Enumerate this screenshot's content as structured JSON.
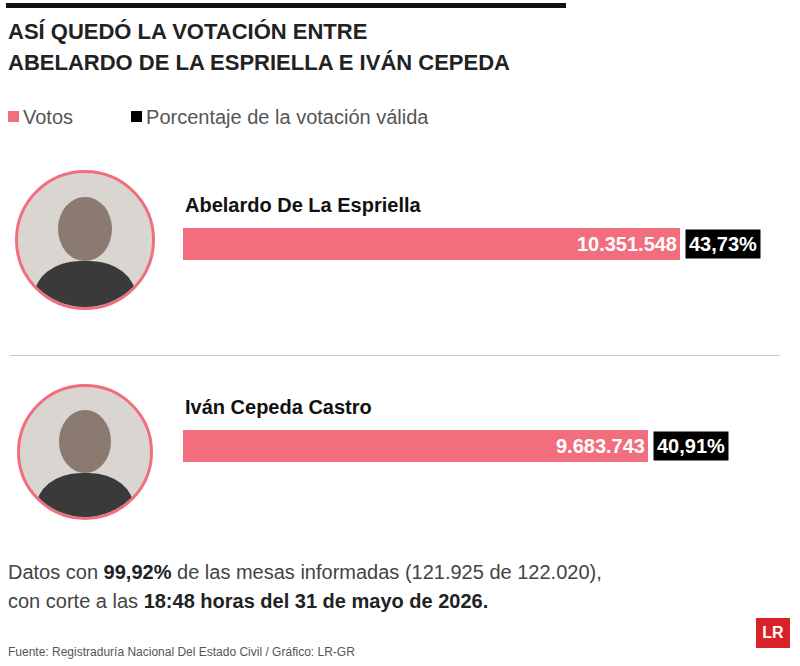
{
  "chart_data": {
    "type": "bar",
    "orientation": "horizontal",
    "title": "ASÍ QUEDÓ LA VOTACIÓN ENTRE\nABELARDO DE LA ESPRIELLA E IVÁN CEPEDA",
    "categories": [
      "Abelardo De La Espriella",
      "Iván Cepeda Castro"
    ],
    "series": [
      {
        "name": "Votos",
        "type": "bar",
        "color": "#f26d7d",
        "values": [
          10351548,
          9683743
        ],
        "value_labels": [
          "10.351.548",
          "9.683.743"
        ]
      },
      {
        "name": "Porcentaje de la votación válida",
        "type": "text",
        "color": "#000000",
        "values": [
          43.73,
          40.91
        ],
        "value_labels": [
          "43,73%",
          "40,91%"
        ]
      }
    ],
    "xlim": [
      0,
      10351548
    ],
    "tick_labels": false,
    "grid": false,
    "data_labels": true,
    "legend": "top-left",
    "footnote": [
      [
        {
          "text": "Datos con "
        },
        {
          "text": "99,92%",
          "bold": true
        },
        {
          "text": " de las mesas informadas (121.925 de 122.020),"
        }
      ],
      [
        {
          "text": "con corte a las "
        },
        {
          "text": "18:48 horas del 31 de mayo de 2026.",
          "bold": true
        }
      ]
    ],
    "source": "Fuente: Registraduría Nacional Del Estado Civil / Gráfico: LR-GR",
    "logo": "LR"
  }
}
